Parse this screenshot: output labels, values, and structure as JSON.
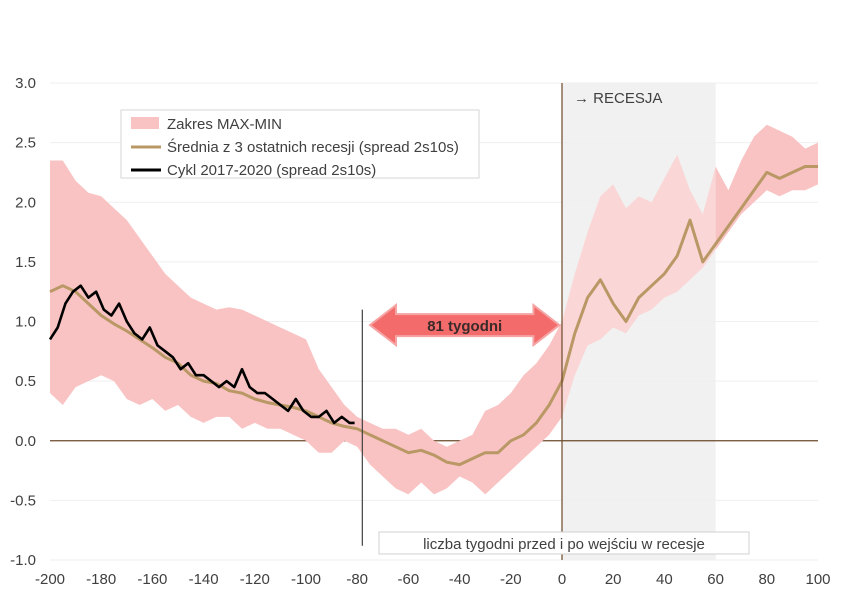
{
  "chart_data": {
    "type": "area",
    "title": "",
    "xlabel": "liczba tygodni przed i po wejściu w recesje",
    "ylabel": "",
    "xlim": [
      -200,
      100
    ],
    "ylim": [
      -1.0,
      3.0
    ],
    "x_ticks": [
      "-200",
      "-180",
      "-160",
      "-140",
      "-120",
      "-100",
      "-80",
      "-60",
      "-40",
      "-20",
      "0",
      "20",
      "40",
      "60",
      "80",
      "100"
    ],
    "y_ticks": [
      "3.0",
      "2.5",
      "2.0",
      "1.5",
      "1.0",
      "0.5",
      "0.0",
      "-0.5",
      "-1.0"
    ],
    "legend": {
      "position": "top-left",
      "entries": [
        "Zakres MAX-MIN",
        "Średnia z 3 ostatnich recesji (spread 2s10s)",
        "Cykl 2017-2020 (spread 2s10s)"
      ]
    },
    "colors": {
      "range_fill": "#f9c3c3",
      "range_fill_after": "#fbd6d6",
      "average_line": "#b99866",
      "cycle_line": "#000000",
      "arrow_fill": "#f36b6b",
      "arrow_stroke": "#f5a3a3",
      "recession_shade": "#f1f1f1",
      "zero_line": "#6b4a2a",
      "recession_line": "#6b4a2a"
    },
    "annotations": {
      "recession_label": "→ RECESJA",
      "arrow_label": "81 tygodni",
      "recession_start_x": 0,
      "recession_shade_range": [
        0,
        60
      ],
      "window_start_x": -78,
      "arrow_range": [
        -75,
        -1
      ]
    },
    "series": [
      {
        "name": "Zakres MAX-MIN",
        "kind": "band",
        "x": [
          -200,
          -195,
          -190,
          -185,
          -180,
          -175,
          -170,
          -165,
          -160,
          -155,
          -150,
          -145,
          -140,
          -135,
          -130,
          -125,
          -120,
          -115,
          -110,
          -105,
          -100,
          -95,
          -90,
          -85,
          -80,
          -75,
          -70,
          -65,
          -60,
          -55,
          -50,
          -45,
          -40,
          -35,
          -30,
          -25,
          -20,
          -15,
          -10,
          -5,
          0,
          5,
          10,
          15,
          20,
          25,
          30,
          35,
          40,
          45,
          50,
          55,
          60,
          65,
          70,
          75,
          80,
          85,
          90,
          95,
          100
        ],
        "upper": [
          2.35,
          2.35,
          2.18,
          2.08,
          2.05,
          1.95,
          1.85,
          1.7,
          1.55,
          1.4,
          1.3,
          1.2,
          1.15,
          1.1,
          1.12,
          1.1,
          1.05,
          1.0,
          0.95,
          0.9,
          0.85,
          0.6,
          0.45,
          0.3,
          0.2,
          0.15,
          0.1,
          0.1,
          0.05,
          0.1,
          0.0,
          -0.05,
          0.0,
          0.05,
          0.25,
          0.3,
          0.4,
          0.55,
          0.65,
          0.8,
          1.0,
          1.4,
          1.75,
          2.05,
          2.15,
          1.95,
          2.05,
          2.0,
          2.2,
          2.4,
          2.1,
          1.9,
          2.3,
          2.1,
          2.35,
          2.55,
          2.65,
          2.6,
          2.55,
          2.45,
          2.5
        ],
        "lower": [
          0.4,
          0.3,
          0.45,
          0.5,
          0.55,
          0.5,
          0.35,
          0.3,
          0.35,
          0.25,
          0.3,
          0.2,
          0.15,
          0.2,
          0.2,
          0.1,
          0.15,
          0.1,
          0.1,
          0.05,
          0.0,
          -0.1,
          -0.1,
          0.0,
          -0.05,
          -0.2,
          -0.3,
          -0.4,
          -0.45,
          -0.35,
          -0.45,
          -0.4,
          -0.3,
          -0.35,
          -0.45,
          -0.35,
          -0.25,
          -0.15,
          -0.05,
          0.05,
          0.2,
          0.55,
          0.8,
          0.85,
          0.95,
          0.9,
          1.05,
          1.1,
          1.2,
          1.25,
          1.35,
          1.45,
          1.6,
          1.75,
          1.9,
          2.0,
          2.1,
          2.05,
          2.1,
          2.1,
          2.15
        ]
      },
      {
        "name": "Średnia z 3 ostatnich recesji (spread 2s10s)",
        "kind": "line",
        "x": [
          -200,
          -195,
          -190,
          -185,
          -180,
          -175,
          -170,
          -165,
          -160,
          -155,
          -150,
          -145,
          -140,
          -135,
          -130,
          -125,
          -120,
          -115,
          -110,
          -105,
          -100,
          -95,
          -90,
          -85,
          -80,
          -75,
          -70,
          -65,
          -60,
          -55,
          -50,
          -45,
          -40,
          -35,
          -30,
          -25,
          -20,
          -15,
          -10,
          -5,
          0,
          5,
          10,
          15,
          20,
          25,
          30,
          35,
          40,
          45,
          50,
          55,
          60,
          65,
          70,
          75,
          80,
          85,
          90,
          95,
          100
        ],
        "values": [
          1.25,
          1.3,
          1.25,
          1.15,
          1.05,
          0.98,
          0.92,
          0.85,
          0.78,
          0.7,
          0.65,
          0.55,
          0.5,
          0.48,
          0.42,
          0.4,
          0.35,
          0.32,
          0.3,
          0.28,
          0.25,
          0.2,
          0.15,
          0.12,
          0.1,
          0.05,
          0.0,
          -0.05,
          -0.1,
          -0.08,
          -0.12,
          -0.18,
          -0.2,
          -0.15,
          -0.1,
          -0.1,
          0.0,
          0.05,
          0.15,
          0.3,
          0.5,
          0.9,
          1.2,
          1.35,
          1.15,
          1.0,
          1.2,
          1.3,
          1.4,
          1.55,
          1.85,
          1.5,
          1.65,
          1.8,
          1.95,
          2.1,
          2.25,
          2.2,
          2.25,
          2.3,
          2.3
        ]
      },
      {
        "name": "Cykl 2017-2020 (spread 2s10s)",
        "kind": "line",
        "x": [
          -200,
          -197,
          -194,
          -191,
          -188,
          -185,
          -182,
          -179,
          -176,
          -173,
          -170,
          -167,
          -164,
          -161,
          -158,
          -155,
          -152,
          -149,
          -146,
          -143,
          -140,
          -137,
          -134,
          -131,
          -128,
          -125,
          -122,
          -119,
          -116,
          -113,
          -110,
          -107,
          -104,
          -101,
          -98,
          -95,
          -92,
          -89,
          -86,
          -83,
          -81
        ],
        "values": [
          0.85,
          0.95,
          1.15,
          1.25,
          1.3,
          1.2,
          1.25,
          1.1,
          1.05,
          1.15,
          1.0,
          0.9,
          0.85,
          0.95,
          0.8,
          0.75,
          0.7,
          0.6,
          0.65,
          0.55,
          0.55,
          0.5,
          0.45,
          0.5,
          0.45,
          0.6,
          0.45,
          0.4,
          0.4,
          0.35,
          0.3,
          0.25,
          0.35,
          0.25,
          0.2,
          0.2,
          0.25,
          0.15,
          0.2,
          0.15,
          0.15
        ]
      }
    ]
  }
}
